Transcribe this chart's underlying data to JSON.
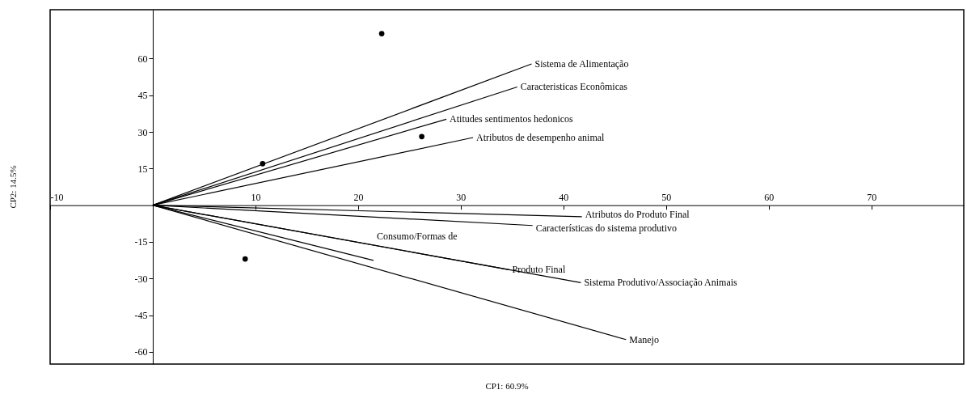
{
  "chart_data": {
    "type": "line",
    "xlabel": "CP1: 60.9%",
    "ylabel": "CP2: 14.5%",
    "xlim": [
      -10,
      79
    ],
    "ylim": [
      -65,
      80
    ],
    "xticks": [
      -10,
      10,
      20,
      30,
      40,
      50,
      60,
      70
    ],
    "yticks": [
      -60,
      -45,
      -30,
      -15,
      15,
      30,
      45,
      60
    ],
    "grid": false,
    "marker": "none",
    "line_style": "solid",
    "series": [
      {
        "name": "Sistema de Alimentação",
        "color": "#000000",
        "x": [
          0,
          36.9
        ],
        "values": [
          0,
          57.8
        ]
      },
      {
        "name": "Caracteristicas Econômicas",
        "color": "#000000",
        "x": [
          0,
          35.5
        ],
        "values": [
          0,
          48.4
        ]
      },
      {
        "name": "Atitudes sentimentos hedonicos",
        "color": "#000000",
        "x": [
          0,
          28.6
        ],
        "values": [
          0,
          35.2
        ]
      },
      {
        "name": "Atributos de desempenho animal",
        "color": "#000000",
        "x": [
          0,
          31.2
        ],
        "values": [
          0,
          27.7
        ]
      },
      {
        "name": "Atributos do Produto Final",
        "color": "#000000",
        "x": [
          0,
          41.8
        ],
        "values": [
          0,
          -4.7
        ]
      },
      {
        "name": "Características do sistema produtivo",
        "color": "#000000",
        "x": [
          0,
          37.0
        ],
        "values": [
          0,
          -8.3
        ]
      },
      {
        "name": "Consumo/Formas de",
        "color": "#000000",
        "x": [
          0,
          21.5
        ],
        "values": [
          0,
          -22.6
        ]
      },
      {
        "name": "Produto Final",
        "color": "#000000",
        "x": [
          0,
          34.7
        ],
        "values": [
          0,
          -26.4
        ]
      },
      {
        "name": "Sistema Produtivo/Associação Animais",
        "color": "#000000",
        "x": [
          0,
          41.7
        ],
        "values": [
          0,
          -31.7
        ]
      },
      {
        "name": "Manejo",
        "color": "#000000",
        "x": [
          0,
          46.1
        ],
        "values": [
          0,
          -55.0
        ]
      },
      {
        "type": "scatter",
        "marker": "circle",
        "color": "#000000",
        "x": [
          22.3,
          26.2,
          10.7,
          9.0
        ],
        "values": [
          70.2,
          28.1,
          17.0,
          -22.0
        ]
      }
    ]
  }
}
